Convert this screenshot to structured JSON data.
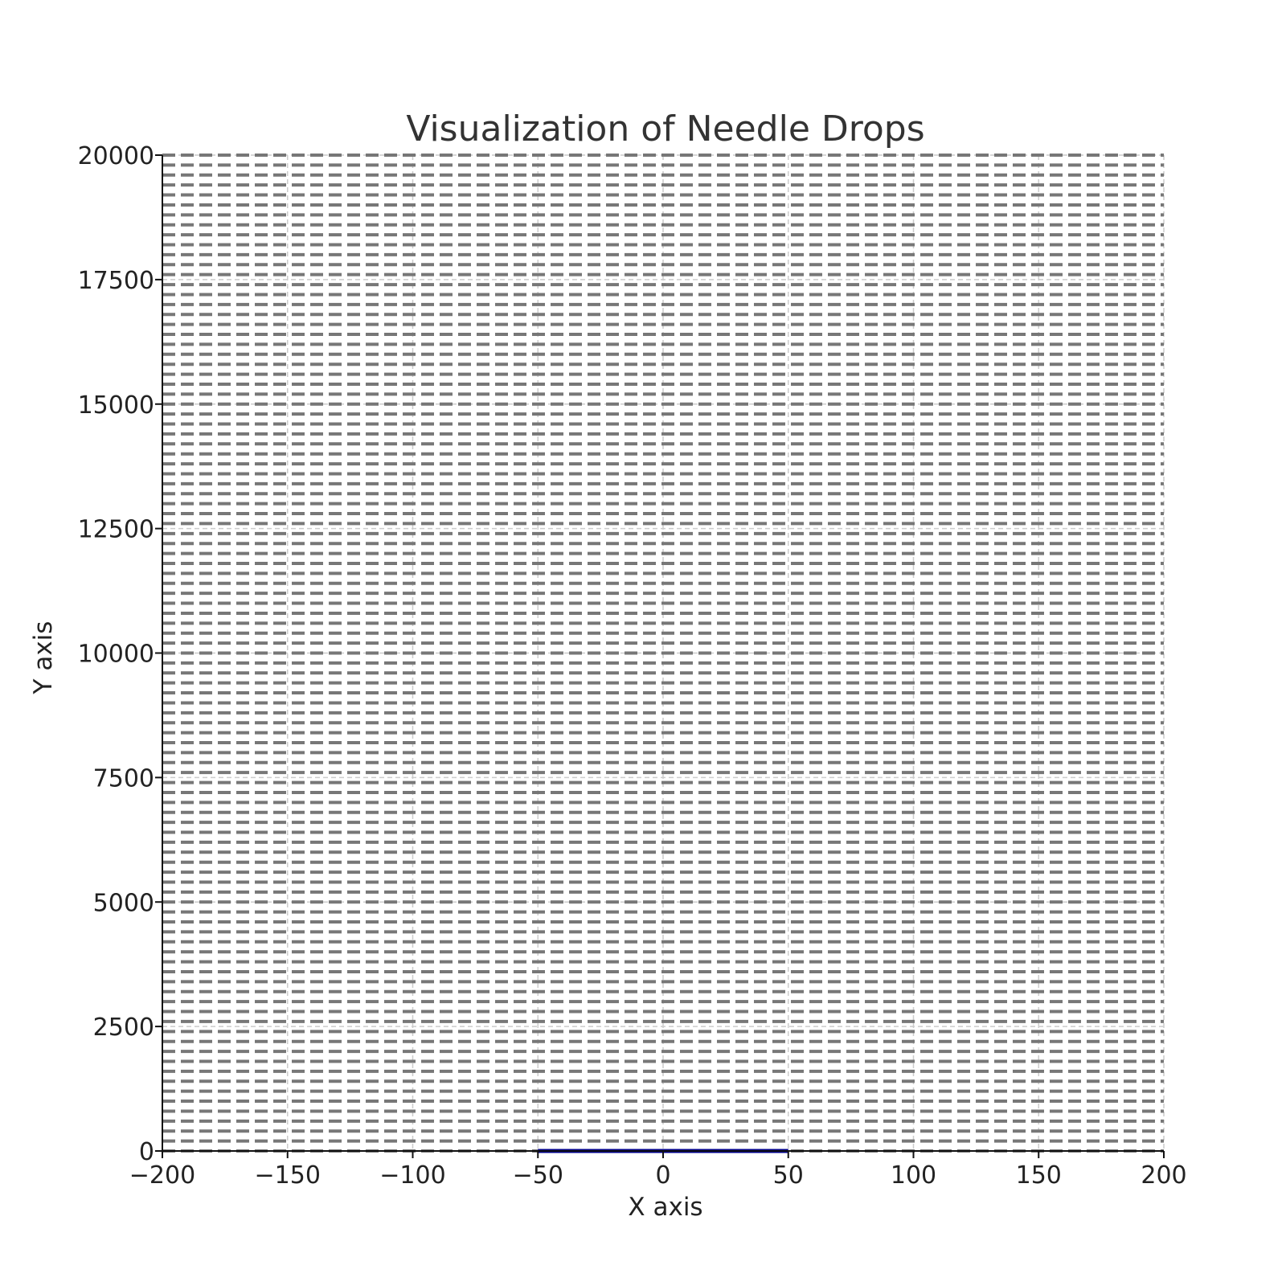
{
  "chart_data": {
    "type": "line",
    "title": "Visualization of Needle Drops",
    "xlabel": "X axis",
    "ylabel": "Y axis",
    "xlim": [
      -200,
      200
    ],
    "ylim": [
      0,
      20000
    ],
    "xticks": [
      -200,
      -150,
      -100,
      -50,
      0,
      50,
      100,
      150,
      200
    ],
    "yticks": [
      0,
      2500,
      5000,
      7500,
      10000,
      12500,
      15000,
      17500,
      20000
    ],
    "xtick_labels": [
      "−200",
      "−150",
      "−100",
      "−50",
      "0",
      "50",
      "100",
      "150",
      "200"
    ],
    "ytick_labels": [
      "0",
      "2500",
      "5000",
      "7500",
      "10000",
      "12500",
      "15000",
      "17500",
      "20000"
    ],
    "grid": true,
    "parallel_lines": {
      "style": "dashed",
      "color": "#777777",
      "x_range": [
        -200,
        200
      ],
      "y_values": [
        0,
        200,
        400,
        600,
        800,
        1000,
        1200,
        1400,
        1600,
        1800,
        2000,
        2200,
        2400,
        2600,
        2800,
        3000,
        3200,
        3400,
        3600,
        3800,
        4000,
        4200,
        4400,
        4600,
        4800,
        5000,
        5200,
        5400,
        5600,
        5800,
        6000,
        6200,
        6400,
        6600,
        6800,
        7000,
        7200,
        7400,
        7600,
        7800,
        8000,
        8200,
        8400,
        8600,
        8800,
        9000,
        9200,
        9400,
        9600,
        9800,
        10000,
        10200,
        10400,
        10600,
        10800,
        11000,
        11200,
        11400,
        11600,
        11800,
        12000,
        12200,
        12400,
        12600,
        12800,
        13000,
        13200,
        13400,
        13600,
        13800,
        14000,
        14200,
        14400,
        14600,
        14800,
        15000,
        15200,
        15400,
        15600,
        15800,
        16000,
        16200,
        16400,
        16600,
        16800,
        17000,
        17200,
        17400,
        17600,
        17800,
        18000,
        18200,
        18400,
        18600,
        18800,
        19000,
        19200,
        19400,
        19600,
        19800,
        20000
      ]
    },
    "needles": [
      {
        "x1": -50,
        "y1": 0,
        "x2": 50,
        "y2": 0,
        "color": "#00008b"
      }
    ]
  }
}
